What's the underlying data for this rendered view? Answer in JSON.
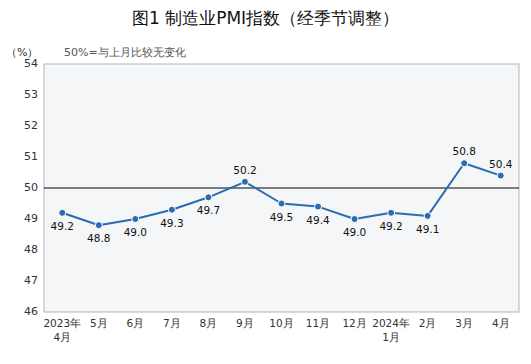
{
  "chart_data": {
    "type": "line",
    "title": "图1  制造业PMI指数（经季节调整）",
    "subtitle": "50%=与上月比较无变化",
    "y_label": "（%）",
    "categories": [
      "2023年\n4月",
      "5月",
      "6月",
      "7月",
      "8月",
      "9月",
      "10月",
      "11月",
      "12月",
      "2024年\n1月",
      "2月",
      "3月",
      "4月"
    ],
    "values": [
      49.2,
      48.8,
      49.0,
      49.3,
      49.7,
      50.2,
      49.5,
      49.4,
      49.0,
      49.2,
      49.1,
      50.8,
      50.4
    ],
    "value_labels": [
      "49.2",
      "48.8",
      "49.0",
      "49.3",
      "49.7",
      "50.2",
      "49.5",
      "49.4",
      "49.0",
      "49.2",
      "49.1",
      "50.8",
      "50.4"
    ],
    "data_labels": true,
    "color": "#2b6cb0",
    "marker": "circle",
    "reference_line": 50,
    "ylim": [
      46,
      54
    ],
    "yticks": [
      46,
      47,
      48,
      49,
      50,
      51,
      52,
      53,
      54
    ],
    "grid": false
  }
}
